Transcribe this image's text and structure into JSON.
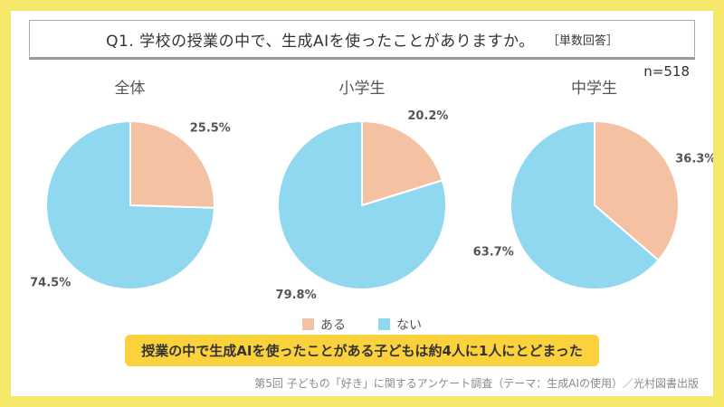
{
  "header": {
    "title": "Q1. 学校の授業の中で、生成AIを使ったことがありますか。",
    "answer_type": "［単数回答］",
    "sample_size": "n=518"
  },
  "chart_data": {
    "type": "pie",
    "legend": [
      "ある",
      "ない"
    ],
    "colors": [
      "#F5C1A3",
      "#8FD8F0"
    ],
    "start_angle": "top",
    "direction": "clockwise",
    "charts": [
      {
        "label": "全体",
        "values": [
          25.5,
          74.5
        ]
      },
      {
        "label": "小学生",
        "values": [
          20.2,
          79.8
        ]
      },
      {
        "label": "中学生",
        "values": [
          36.3,
          63.7
        ]
      }
    ]
  },
  "highlight": "授業の中で生成AIを使ったことがある子どもは約4人に1人にとどまった",
  "footer": "第5回 子どもの「好き」に関するアンケート調査（テーマ：生成AIの使用）／光村図書出版",
  "frame_color": "#F6E969",
  "highlight_color": "#FBD23B"
}
